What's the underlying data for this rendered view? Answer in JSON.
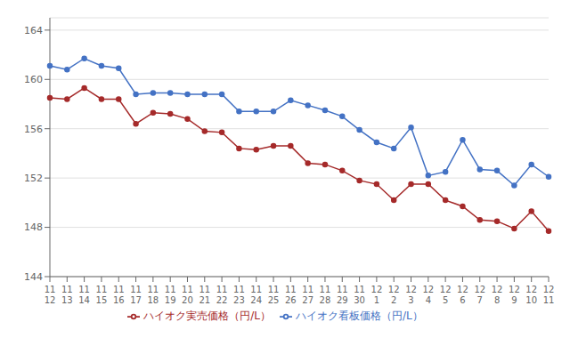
{
  "chart_data": {
    "type": "line",
    "categories": [
      "11\n12",
      "11\n13",
      "11\n14",
      "11\n15",
      "11\n16",
      "11\n17",
      "11\n18",
      "11\n19",
      "11\n20",
      "11\n21",
      "11\n22",
      "11\n23",
      "11\n24",
      "11\n25",
      "11\n26",
      "11\n27",
      "11\n28",
      "11\n29",
      "11\n30",
      "12\n1",
      "12\n2",
      "12\n3",
      "12\n4",
      "12\n5",
      "12\n6",
      "12\n7",
      "12\n8",
      "12\n9",
      "12\n10",
      "12\n11"
    ],
    "series": [
      {
        "name": "ハイオク看板価格（円/L）",
        "color": "#4472c4",
        "marker": "circle",
        "values": [
          161.1,
          160.8,
          161.7,
          161.1,
          160.9,
          158.8,
          158.9,
          158.9,
          158.8,
          158.8,
          158.8,
          157.4,
          157.4,
          157.4,
          158.3,
          157.9,
          157.5,
          157.0,
          155.9,
          154.9,
          154.4,
          156.1,
          152.2,
          152.5,
          155.1,
          152.7,
          152.6,
          151.4,
          153.1,
          152.1
        ]
      },
      {
        "name": "ハイオク実売価格（円/L）",
        "color": "#a52a2a",
        "marker": "circle",
        "values": [
          158.5,
          158.4,
          159.3,
          158.4,
          158.4,
          156.4,
          157.3,
          157.2,
          156.8,
          155.8,
          155.7,
          154.4,
          154.3,
          154.6,
          154.6,
          153.2,
          153.1,
          152.6,
          151.8,
          151.5,
          150.2,
          151.5,
          151.5,
          150.2,
          149.7,
          148.6,
          148.5,
          147.9,
          149.3,
          147.7
        ]
      }
    ],
    "ylim": [
      144,
      165
    ],
    "yticks": [
      144,
      148,
      152,
      156,
      160,
      164
    ],
    "grid": true,
    "legend": "bottom"
  }
}
